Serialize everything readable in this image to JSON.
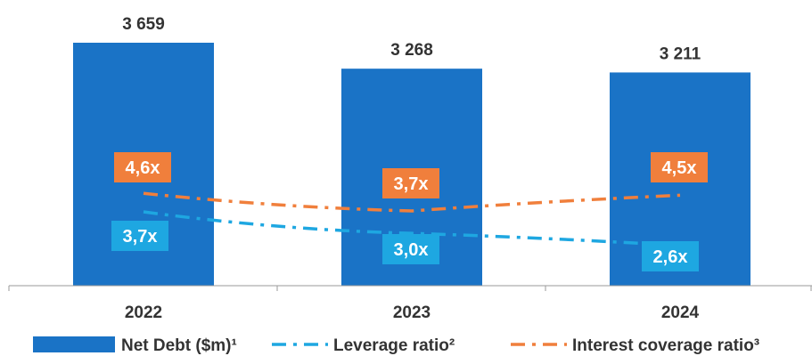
{
  "chart_data": {
    "type": "bar",
    "categories": [
      "2022",
      "2023",
      "2024"
    ],
    "series": [
      {
        "name": "Net Debt ($m)¹",
        "kind": "bar",
        "values": [
          3659,
          3268,
          3211
        ],
        "value_labels": [
          "3 659",
          "3 268",
          "3 211"
        ],
        "color": "#1a73c6"
      },
      {
        "name": "Leverage ratio²",
        "kind": "line-dashdot",
        "values": [
          3.7,
          3.0,
          2.6
        ],
        "value_labels": [
          "3,7x",
          "3,0x",
          "2,6x"
        ],
        "color": "#1ea7e1"
      },
      {
        "name": "Interest coverage ratio³",
        "kind": "line-dashdot",
        "values": [
          4.6,
          3.7,
          4.5
        ],
        "value_labels": [
          "4,6x",
          "3,7x",
          "4,5x"
        ],
        "color": "#f07f3c"
      }
    ],
    "legend_position": "bottom",
    "grid": false
  }
}
